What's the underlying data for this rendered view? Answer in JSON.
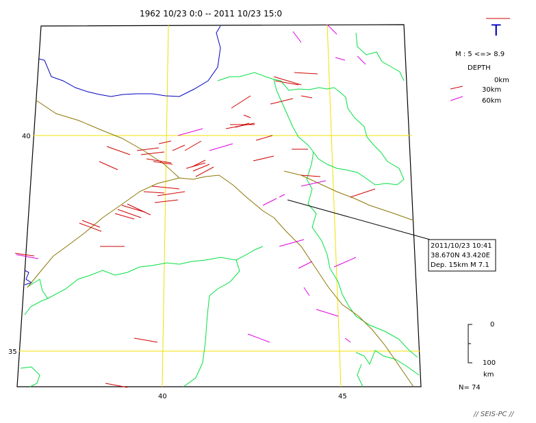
{
  "header": {
    "period": "1962 10/23 0:0 -- 2011 10/23 15:0"
  },
  "axes": {
    "lat_labels": [
      "40",
      "35"
    ],
    "lon_labels": [
      "40",
      "45"
    ]
  },
  "legend": {
    "symbol": "T",
    "magnitude_range": "M : 5 <=> 8.9",
    "depth_title": "DEPTH",
    "depth_items": [
      {
        "label": "0km",
        "color": ""
      },
      {
        "label": "30km",
        "color": "#d00000"
      },
      {
        "label": "60km",
        "color": "#e000e0"
      }
    ]
  },
  "event_box": {
    "datetime": "2011/10/23 10:41",
    "location": "38.670N  43.420E",
    "depth_mag": "Dep. 15km   M 7.1"
  },
  "scale": {
    "top": "0",
    "bottom": "100",
    "unit": "km"
  },
  "count": "N= 74",
  "credit": "// SEIS-PC //",
  "colors": {
    "grid": "#f0e000",
    "border": "#00e040",
    "coast": "#0000c0",
    "fault": "#8b7500",
    "shallow": "#d00000",
    "deep": "#e000e0"
  }
}
